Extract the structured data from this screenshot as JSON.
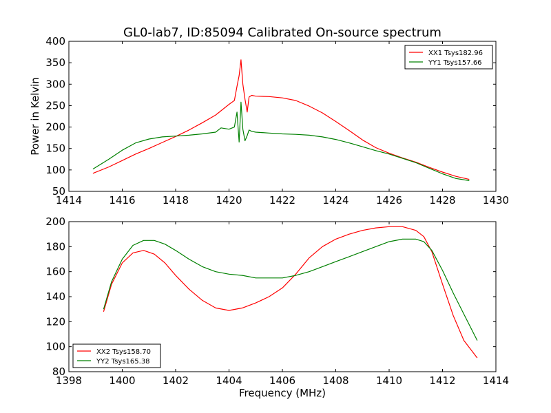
{
  "title": "GL0-lab7, ID:85094 Calibrated On-source spectrum",
  "chart_data": [
    {
      "type": "line",
      "xlabel": "",
      "ylabel": "Power in Kelvin",
      "xlim": [
        1414,
        1430
      ],
      "ylim": [
        50,
        400
      ],
      "xticks": [
        "1414",
        "1416",
        "1418",
        "1420",
        "1422",
        "1424",
        "1426",
        "1428",
        "1430"
      ],
      "yticks": [
        "50",
        "100",
        "150",
        "200",
        "250",
        "300",
        "350",
        "400"
      ],
      "grid": false,
      "legend_position": "top-right",
      "series": [
        {
          "name": "XX1 Tsys182.96",
          "color": "#ff0000",
          "x": [
            1414.9,
            1415.5,
            1416.0,
            1416.5,
            1417.0,
            1417.5,
            1418.0,
            1418.5,
            1419.0,
            1419.5,
            1420.0,
            1420.2,
            1420.3,
            1420.38,
            1420.45,
            1420.52,
            1420.6,
            1420.68,
            1420.75,
            1420.85,
            1421.0,
            1421.5,
            1422.0,
            1422.5,
            1423.0,
            1423.5,
            1424.0,
            1424.5,
            1425.0,
            1425.5,
            1426.0,
            1426.5,
            1427.0,
            1427.5,
            1428.0,
            1428.5,
            1429.0
          ],
          "y": [
            92,
            107,
            122,
            137,
            150,
            164,
            178,
            193,
            210,
            228,
            253,
            262,
            295,
            320,
            357,
            300,
            265,
            235,
            270,
            274,
            272,
            271,
            268,
            262,
            249,
            233,
            213,
            192,
            170,
            152,
            139,
            128,
            118,
            106,
            95,
            85,
            78
          ]
        },
        {
          "name": "YY1 Tsys157.66",
          "color": "#008000",
          "x": [
            1414.9,
            1415.5,
            1416.0,
            1416.5,
            1417.0,
            1417.5,
            1418.0,
            1418.5,
            1419.0,
            1419.5,
            1419.7,
            1420.0,
            1420.2,
            1420.3,
            1420.38,
            1420.45,
            1420.52,
            1420.6,
            1420.68,
            1420.75,
            1420.85,
            1421.0,
            1421.5,
            1422.0,
            1422.5,
            1423.0,
            1423.5,
            1424.0,
            1424.5,
            1425.0,
            1425.5,
            1426.0,
            1426.5,
            1427.0,
            1427.5,
            1428.0,
            1428.5,
            1429.0
          ],
          "y": [
            102,
            125,
            146,
            163,
            172,
            177,
            179,
            181,
            184,
            188,
            198,
            195,
            200,
            235,
            165,
            258,
            195,
            168,
            180,
            193,
            190,
            188,
            186,
            184,
            183,
            181,
            177,
            171,
            163,
            154,
            145,
            137,
            127,
            117,
            104,
            91,
            80,
            75
          ]
        }
      ]
    },
    {
      "type": "line",
      "xlabel": "Frequency (MHz)",
      "ylabel": "",
      "xlim": [
        1398,
        1414
      ],
      "ylim": [
        80,
        200
      ],
      "xticks": [
        "1398",
        "1400",
        "1402",
        "1404",
        "1406",
        "1408",
        "1410",
        "1412",
        "1414"
      ],
      "yticks": [
        "80",
        "100",
        "120",
        "140",
        "160",
        "180",
        "200"
      ],
      "grid": false,
      "legend_position": "bottom-left",
      "series": [
        {
          "name": "XX2 Tsys158.70",
          "color": "#ff0000",
          "x": [
            1399.3,
            1399.6,
            1400.0,
            1400.4,
            1400.8,
            1401.2,
            1401.6,
            1402.0,
            1402.5,
            1403.0,
            1403.5,
            1404.0,
            1404.5,
            1405.0,
            1405.5,
            1406.0,
            1406.5,
            1407.0,
            1407.5,
            1408.0,
            1408.5,
            1409.0,
            1409.5,
            1410.0,
            1410.5,
            1411.0,
            1411.3,
            1411.6,
            1412.0,
            1412.4,
            1412.8,
            1413.3
          ],
          "y": [
            128,
            150,
            167,
            175,
            177,
            174,
            167,
            157,
            146,
            137,
            131,
            129,
            131,
            135,
            140,
            147,
            158,
            171,
            180,
            186,
            190,
            193,
            195,
            196,
            196,
            193,
            188,
            176,
            150,
            125,
            105,
            91
          ]
        },
        {
          "name": "YY2 Tsys165.38",
          "color": "#008000",
          "x": [
            1399.3,
            1399.6,
            1400.0,
            1400.4,
            1400.8,
            1401.2,
            1401.6,
            1402.0,
            1402.5,
            1403.0,
            1403.5,
            1404.0,
            1404.5,
            1405.0,
            1405.5,
            1406.0,
            1406.5,
            1407.0,
            1407.5,
            1408.0,
            1408.5,
            1409.0,
            1409.5,
            1410.0,
            1410.5,
            1411.0,
            1411.3,
            1411.6,
            1412.0,
            1412.4,
            1412.8,
            1413.3
          ],
          "y": [
            130,
            152,
            170,
            181,
            185,
            185,
            182,
            177,
            170,
            164,
            160,
            158,
            157,
            155,
            155,
            155,
            157,
            160,
            164,
            168,
            172,
            176,
            180,
            184,
            186,
            186,
            184,
            177,
            161,
            143,
            126,
            105
          ]
        }
      ]
    }
  ]
}
